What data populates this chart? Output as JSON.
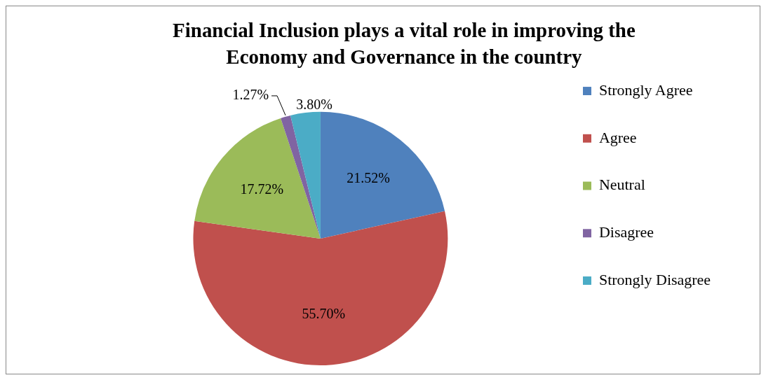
{
  "chart_data": {
    "type": "pie",
    "title": "Financial Inclusion plays a vital role in improving the Economy and Governance in the country",
    "categories": [
      "Strongly Agree",
      "Agree",
      "Neutral",
      "Disagree",
      "Strongly Disagree"
    ],
    "values": [
      21.52,
      55.7,
      17.72,
      1.27,
      3.8
    ],
    "value_labels": [
      "21.52%",
      "55.70%",
      "17.72%",
      "1.27%",
      "3.80%"
    ],
    "colors": [
      "#4f81bd",
      "#c0504d",
      "#9bbb59",
      "#8064a2",
      "#4bacc6"
    ],
    "legend": "right"
  }
}
